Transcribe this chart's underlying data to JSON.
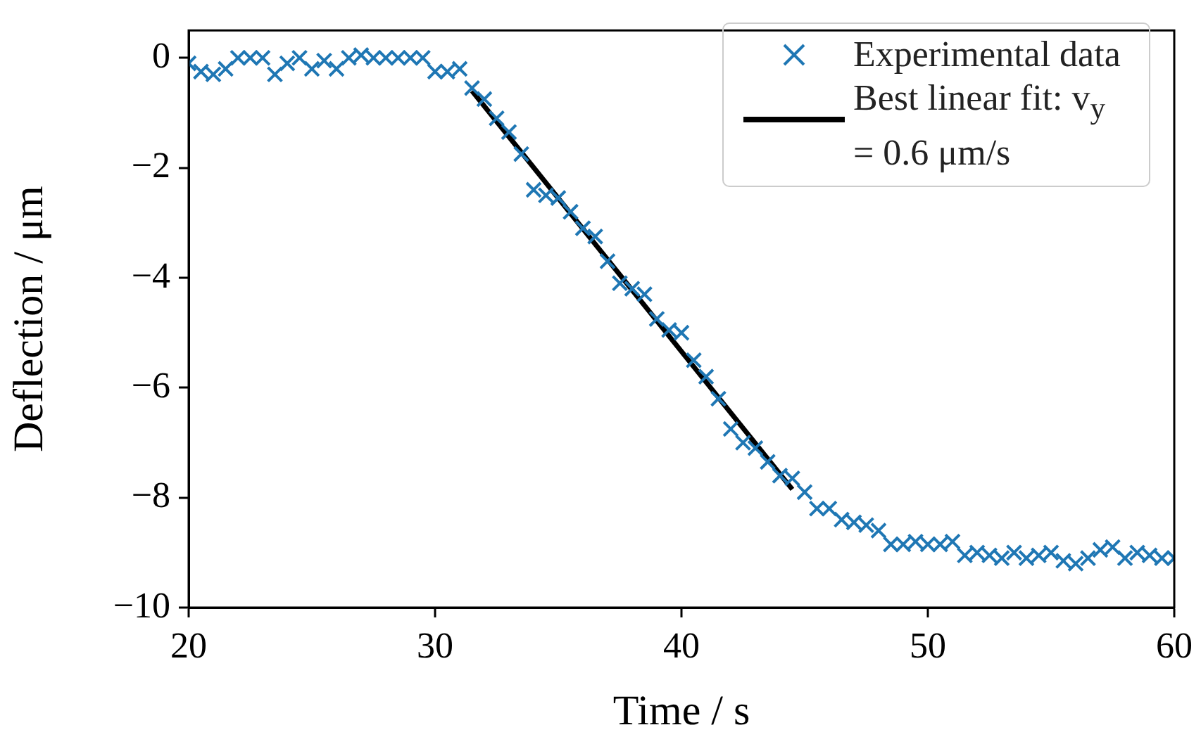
{
  "chart_data": {
    "type": "scatter",
    "xlabel": "Time / s",
    "ylabel": "Deflection / μm",
    "xlim": [
      20,
      60
    ],
    "xticks": [
      20,
      30,
      40,
      50,
      60
    ],
    "ylim": [
      -10,
      0.5
    ],
    "yticks": [
      -10,
      -8,
      -6,
      -4,
      -2,
      0
    ],
    "grid": false,
    "legend": "top right",
    "series": [
      {
        "name": "Experimental data",
        "type": "scatter",
        "marker": "cross",
        "color": "#1f77b4",
        "x": [
          20,
          20.5,
          21,
          21.5,
          22,
          22.5,
          23,
          23.5,
          24,
          24.5,
          25,
          25.5,
          26,
          26.5,
          27,
          27.5,
          28,
          28.5,
          29,
          29.5,
          30,
          30.5,
          31,
          31.5,
          32,
          32.5,
          33,
          33.5,
          34,
          34.5,
          35,
          35.5,
          36,
          36.5,
          37,
          37.5,
          38,
          38.5,
          39,
          39.5,
          40,
          40.5,
          41,
          41.5,
          42,
          42.5,
          43,
          43.5,
          44,
          44.5,
          45,
          45.5,
          46,
          46.5,
          47,
          47.5,
          48,
          48.5,
          49,
          49.5,
          50,
          50.5,
          51,
          51.5,
          52,
          52.5,
          53,
          53.5,
          54,
          54.5,
          55,
          55.5,
          56,
          56.5,
          57,
          57.5,
          58,
          58.5,
          59,
          59.5,
          60
        ],
        "values": [
          -0.1,
          -0.25,
          -0.3,
          -0.2,
          0,
          0,
          0,
          -0.3,
          -0.1,
          0,
          -0.2,
          -0.05,
          -0.2,
          0,
          0.05,
          0,
          0,
          0,
          0,
          0,
          -0.25,
          -0.25,
          -0.2,
          -0.55,
          -0.75,
          -1.1,
          -1.35,
          -1.75,
          -2.4,
          -2.5,
          -2.55,
          -2.8,
          -3.1,
          -3.25,
          -3.7,
          -4.1,
          -4.2,
          -4.3,
          -4.75,
          -4.95,
          -5,
          -5.5,
          -5.8,
          -6.2,
          -6.75,
          -7,
          -7.1,
          -7.35,
          -7.6,
          -7.65,
          -7.9,
          -8.2,
          -8.2,
          -8.4,
          -8.45,
          -8.5,
          -8.6,
          -8.85,
          -8.85,
          -8.8,
          -8.85,
          -8.85,
          -8.8,
          -9.05,
          -9,
          -9.05,
          -9.1,
          -9,
          -9.1,
          -9.05,
          -9,
          -9.15,
          -9.2,
          -9.1,
          -8.95,
          -8.9,
          -9.1,
          -9,
          -9.05,
          -9.1,
          -9.1
        ]
      },
      {
        "name": "Best linear fit: v$_{y}$ = 0.6 μm/s",
        "type": "line",
        "marker": "none",
        "color": "#000000",
        "x": [
          31.5,
          44.5
        ],
        "values": [
          -0.6,
          -7.85
        ]
      }
    ]
  }
}
